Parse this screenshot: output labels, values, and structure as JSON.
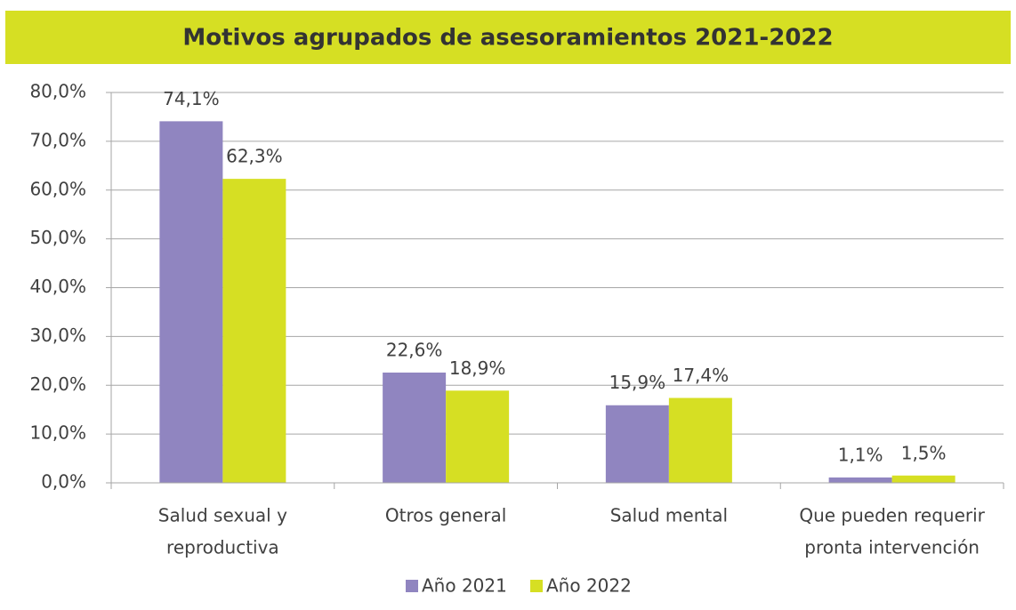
{
  "chart_data": {
    "type": "bar",
    "title": "Motivos agrupados de asesoramientos  2021-2022",
    "categories": [
      [
        "Salud sexual y",
        "reproductiva"
      ],
      [
        "Otros general"
      ],
      [
        "Salud mental"
      ],
      [
        "Que pueden requerir",
        "pronta intervención"
      ]
    ],
    "series": [
      {
        "name": "Año 2021",
        "color": "#9085c0",
        "values": [
          74.1,
          22.6,
          15.9,
          1.1
        ],
        "value_labels": [
          "74,1%",
          "22,6%",
          "15,9%",
          "1,1%"
        ]
      },
      {
        "name": "Año 2022",
        "color": "#d6df23",
        "values": [
          62.3,
          18.9,
          17.4,
          1.5
        ],
        "value_labels": [
          "62,3%",
          "18,9%",
          "17,4%",
          "1,5%"
        ]
      }
    ],
    "ylim": [
      0,
      80
    ],
    "yticks": [
      {
        "value": 0,
        "label": "0,0%"
      },
      {
        "value": 10,
        "label": "10,0%"
      },
      {
        "value": 20,
        "label": "20,0%"
      },
      {
        "value": 30,
        "label": "30,0%"
      },
      {
        "value": 40,
        "label": "40,0%"
      },
      {
        "value": 50,
        "label": "50,0%"
      },
      {
        "value": 60,
        "label": "60,0%"
      },
      {
        "value": 70,
        "label": "70,0%"
      },
      {
        "value": 80,
        "label": "80,0%"
      }
    ],
    "grid": true,
    "legend": "bottom"
  }
}
